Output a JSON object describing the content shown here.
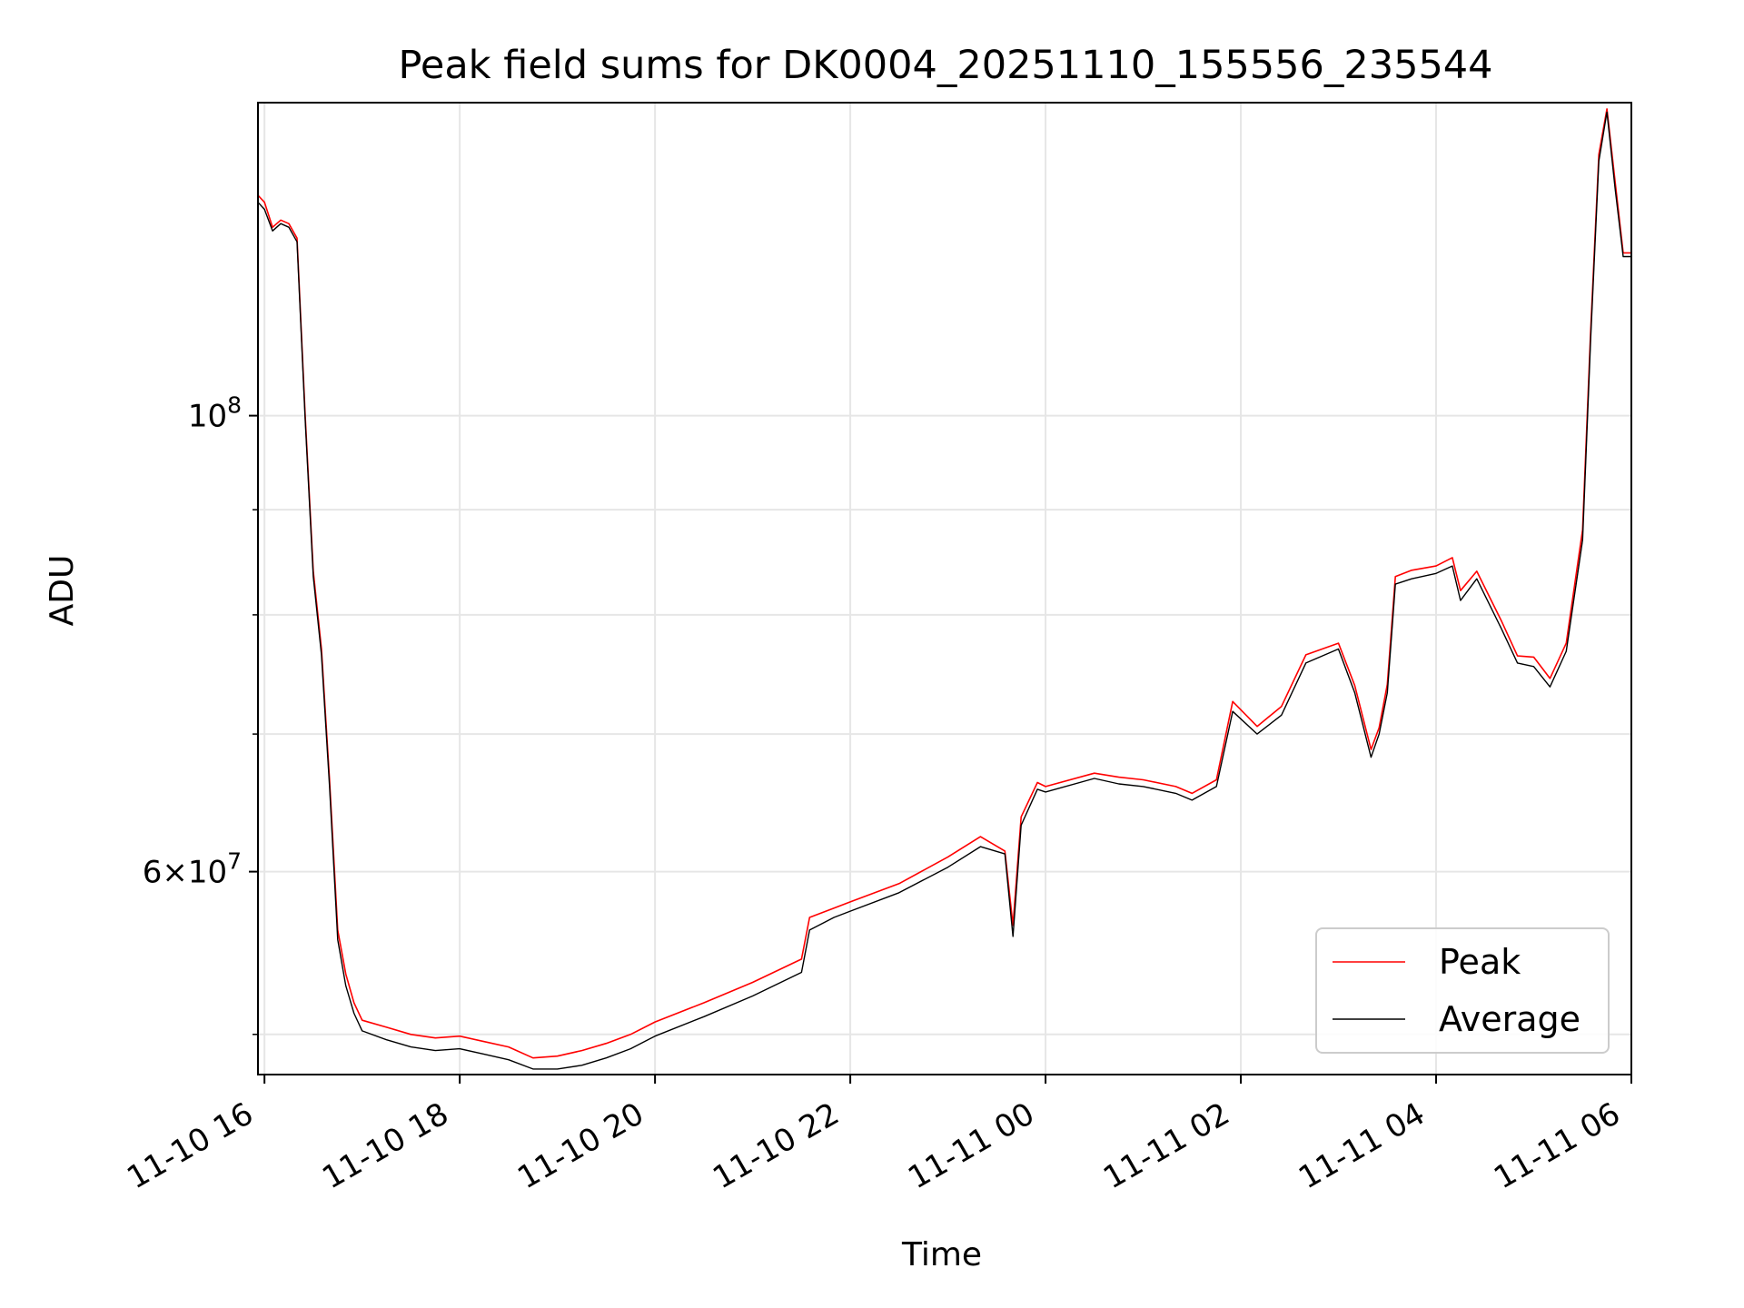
{
  "chart_data": {
    "type": "line",
    "title": "Peak field sums for DK0004_20251110_155556_235544",
    "xlabel": "Time",
    "ylabel": "ADU",
    "yscale": "log",
    "xlim": [
      "2025-11-10 15:56",
      "2025-11-11 06:00"
    ],
    "ylim": [
      47800000,
      142000000
    ],
    "x_tick_labels": [
      "11-10 16",
      "11-10 18",
      "11-10 20",
      "11-10 22",
      "11-11 00",
      "11-11 02",
      "11-11 04",
      "11-11 06"
    ],
    "x_ticks": [
      "2025-11-10 16:00",
      "2025-11-10 18:00",
      "2025-11-10 20:00",
      "2025-11-10 22:00",
      "2025-11-11 00:00",
      "2025-11-11 02:00",
      "2025-11-11 04:00",
      "2025-11-11 06:00"
    ],
    "y_major_ticks": [
      {
        "value": 100000000,
        "base": "10",
        "exp": "8"
      },
      {
        "value": 60000000,
        "mant": "6",
        "base": "10",
        "exp": "7"
      }
    ],
    "y_minor_ticks": [
      50000000,
      70000000,
      80000000,
      90000000
    ],
    "grid": true,
    "legend_position": "lower-right",
    "series": [
      {
        "name": "Peak",
        "color": "#ff0000",
        "x": [
          "2025-11-10 15:56",
          "2025-11-10 16:00",
          "2025-11-10 16:05",
          "2025-11-10 16:10",
          "2025-11-10 16:15",
          "2025-11-10 16:20",
          "2025-11-10 16:25",
          "2025-11-10 16:30",
          "2025-11-10 16:35",
          "2025-11-10 16:40",
          "2025-11-10 16:45",
          "2025-11-10 16:50",
          "2025-11-10 16:55",
          "2025-11-10 17:00",
          "2025-11-10 17:15",
          "2025-11-10 17:30",
          "2025-11-10 17:45",
          "2025-11-10 18:00",
          "2025-11-10 18:15",
          "2025-11-10 18:30",
          "2025-11-10 18:45",
          "2025-11-10 19:00",
          "2025-11-10 19:15",
          "2025-11-10 19:30",
          "2025-11-10 19:45",
          "2025-11-10 20:00",
          "2025-11-10 20:30",
          "2025-11-10 21:00",
          "2025-11-10 21:30",
          "2025-11-10 21:35",
          "2025-11-10 21:50",
          "2025-11-10 22:00",
          "2025-11-10 22:30",
          "2025-11-10 23:00",
          "2025-11-10 23:20",
          "2025-11-10 23:35",
          "2025-11-10 23:40",
          "2025-11-10 23:45",
          "2025-11-10 23:55",
          "2025-11-11 00:00",
          "2025-11-11 00:30",
          "2025-11-11 00:45",
          "2025-11-11 01:00",
          "2025-11-11 01:20",
          "2025-11-11 01:30",
          "2025-11-11 01:45",
          "2025-11-11 01:55",
          "2025-11-11 02:10",
          "2025-11-11 02:25",
          "2025-11-11 02:40",
          "2025-11-11 03:00",
          "2025-11-11 03:10",
          "2025-11-11 03:20",
          "2025-11-11 03:25",
          "2025-11-11 03:30",
          "2025-11-11 03:35",
          "2025-11-11 03:45",
          "2025-11-11 04:00",
          "2025-11-11 04:10",
          "2025-11-11 04:15",
          "2025-11-11 04:25",
          "2025-11-11 04:40",
          "2025-11-11 04:50",
          "2025-11-11 05:00",
          "2025-11-11 05:10",
          "2025-11-11 05:20",
          "2025-11-11 05:30",
          "2025-11-11 05:35",
          "2025-11-11 05:40",
          "2025-11-11 05:45",
          "2025-11-11 05:50",
          "2025-11-11 05:55",
          "2025-11-11 06:00"
        ],
        "y": [
          128000000,
          127000000,
          123500000,
          124500000,
          124000000,
          122000000,
          100000000,
          84000000,
          77000000,
          66500000,
          56200000,
          53500000,
          51800000,
          50800000,
          50400000,
          50000000,
          49800000,
          49900000,
          49600000,
          49300000,
          48700000,
          48800000,
          49100000,
          49500000,
          50000000,
          50700000,
          51800000,
          53000000,
          54400000,
          57000000,
          57600000,
          58000000,
          59200000,
          61000000,
          62400000,
          61400000,
          56500000,
          63800000,
          66300000,
          66000000,
          67000000,
          66700000,
          66500000,
          66000000,
          65500000,
          66500000,
          72600000,
          70600000,
          72200000,
          76500000,
          77500000,
          73900000,
          68800000,
          70500000,
          74000000,
          83500000,
          84100000,
          84500000,
          85300000,
          82200000,
          84000000,
          79500000,
          76400000,
          76300000,
          74500000,
          77500000,
          88000000,
          110000000,
          134000000,
          141000000,
          130000000,
          120000000,
          120000000
        ]
      },
      {
        "name": "Average",
        "color": "#000000",
        "x": [
          "2025-11-10 15:56",
          "2025-11-10 16:00",
          "2025-11-10 16:05",
          "2025-11-10 16:10",
          "2025-11-10 16:15",
          "2025-11-10 16:20",
          "2025-11-10 16:25",
          "2025-11-10 16:30",
          "2025-11-10 16:35",
          "2025-11-10 16:40",
          "2025-11-10 16:45",
          "2025-11-10 16:50",
          "2025-11-10 16:55",
          "2025-11-10 17:00",
          "2025-11-10 17:15",
          "2025-11-10 17:30",
          "2025-11-10 17:45",
          "2025-11-10 18:00",
          "2025-11-10 18:15",
          "2025-11-10 18:30",
          "2025-11-10 18:45",
          "2025-11-10 19:00",
          "2025-11-10 19:15",
          "2025-11-10 19:30",
          "2025-11-10 19:45",
          "2025-11-10 20:00",
          "2025-11-10 20:30",
          "2025-11-10 21:00",
          "2025-11-10 21:30",
          "2025-11-10 21:35",
          "2025-11-10 21:50",
          "2025-11-10 22:00",
          "2025-11-10 22:30",
          "2025-11-10 23:00",
          "2025-11-10 23:20",
          "2025-11-10 23:35",
          "2025-11-10 23:40",
          "2025-11-10 23:45",
          "2025-11-10 23:55",
          "2025-11-11 00:00",
          "2025-11-11 00:30",
          "2025-11-11 00:45",
          "2025-11-11 01:00",
          "2025-11-11 01:20",
          "2025-11-11 01:30",
          "2025-11-11 01:45",
          "2025-11-11 01:55",
          "2025-11-11 02:10",
          "2025-11-11 02:25",
          "2025-11-11 02:40",
          "2025-11-11 03:00",
          "2025-11-11 03:10",
          "2025-11-11 03:20",
          "2025-11-11 03:25",
          "2025-11-11 03:30",
          "2025-11-11 03:35",
          "2025-11-11 03:45",
          "2025-11-11 04:00",
          "2025-11-11 04:10",
          "2025-11-11 04:15",
          "2025-11-11 04:25",
          "2025-11-11 04:40",
          "2025-11-11 04:50",
          "2025-11-11 05:00",
          "2025-11-11 05:10",
          "2025-11-11 05:20",
          "2025-11-11 05:30",
          "2025-11-11 05:35",
          "2025-11-11 05:40",
          "2025-11-11 05:45",
          "2025-11-11 05:50",
          "2025-11-11 05:55",
          "2025-11-11 06:00"
        ],
        "y": [
          127000000,
          126000000,
          123000000,
          124000000,
          123500000,
          121500000,
          99500000,
          83500000,
          76500000,
          66000000,
          55600000,
          52800000,
          51200000,
          50200000,
          49700000,
          49300000,
          49100000,
          49200000,
          48900000,
          48600000,
          48100000,
          48100000,
          48300000,
          48700000,
          49200000,
          49900000,
          51000000,
          52200000,
          53600000,
          56200000,
          57000000,
          57400000,
          58600000,
          60300000,
          61700000,
          61200000,
          55800000,
          63200000,
          65800000,
          65600000,
          66600000,
          66200000,
          66000000,
          65500000,
          65000000,
          66000000,
          71800000,
          70000000,
          71500000,
          75800000,
          77000000,
          73300000,
          68200000,
          70000000,
          73300000,
          82800000,
          83300000,
          83800000,
          84500000,
          81300000,
          83300000,
          78800000,
          75800000,
          75500000,
          73800000,
          76800000,
          87000000,
          109000000,
          133000000,
          140500000,
          129000000,
          119500000,
          119500000
        ]
      }
    ]
  }
}
